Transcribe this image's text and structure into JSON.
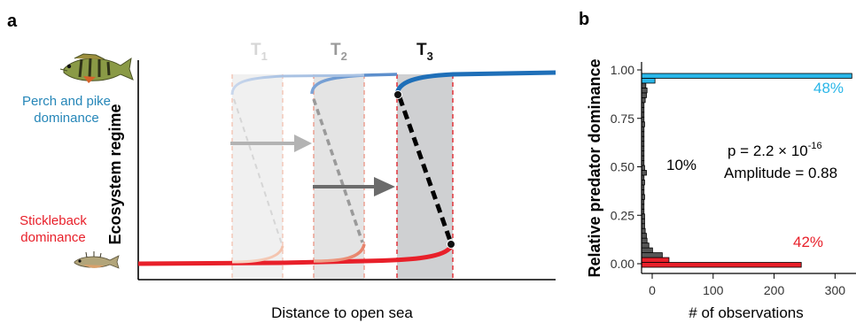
{
  "chart_data": [
    {
      "panel": "a",
      "type": "diagram",
      "xlabel": "Distance to open sea",
      "ylabel": "Ecosystem regime",
      "regime_labels": {
        "top": [
          "Perch and pike",
          "dominance"
        ],
        "bottom": [
          "Stickleback",
          "dominance"
        ]
      },
      "thresholds": [
        {
          "name": "T",
          "sub": "1",
          "color": "#d6d6d6"
        },
        {
          "name": "T",
          "sub": "2",
          "color": "#9a9a9a"
        },
        {
          "name": "T",
          "sub": "3",
          "color": "#111111"
        }
      ],
      "colors": {
        "perch": "#1f6fb8",
        "stickleback": "#e8202a",
        "threshold_line": "#e33b3b"
      }
    },
    {
      "panel": "b",
      "type": "bar",
      "orientation": "horizontal",
      "xlabel": "# of observations",
      "ylabel": "Relative predator dominance",
      "xlim": [
        0,
        350
      ],
      "ylim": [
        0,
        1
      ],
      "xticks": [
        0,
        100,
        200,
        300
      ],
      "yticks": [
        "0.00",
        "0.25",
        "0.50",
        "0.75",
        "1.00"
      ],
      "bin_width": 0.025,
      "bins": [
        {
          "y": 0.0,
          "count": 262,
          "color": "#e8202a"
        },
        {
          "y": 0.025,
          "count": 45,
          "color": "#e8202a"
        },
        {
          "y": 0.05,
          "count": 34,
          "color": "#555555"
        },
        {
          "y": 0.075,
          "count": 18,
          "color": "#555555"
        },
        {
          "y": 0.1,
          "count": 12,
          "color": "#555555"
        },
        {
          "y": 0.125,
          "count": 9,
          "color": "#555555"
        },
        {
          "y": 0.15,
          "count": 8,
          "color": "#555555"
        },
        {
          "y": 0.175,
          "count": 6,
          "color": "#555555"
        },
        {
          "y": 0.2,
          "count": 5,
          "color": "#555555"
        },
        {
          "y": 0.225,
          "count": 5,
          "color": "#555555"
        },
        {
          "y": 0.25,
          "count": 5,
          "color": "#555555"
        },
        {
          "y": 0.275,
          "count": 4,
          "color": "#555555"
        },
        {
          "y": 0.3,
          "count": 4,
          "color": "#555555"
        },
        {
          "y": 0.325,
          "count": 4,
          "color": "#555555"
        },
        {
          "y": 0.35,
          "count": 5,
          "color": "#555555"
        },
        {
          "y": 0.375,
          "count": 4,
          "color": "#555555"
        },
        {
          "y": 0.4,
          "count": 4,
          "color": "#555555"
        },
        {
          "y": 0.425,
          "count": 5,
          "color": "#555555"
        },
        {
          "y": 0.45,
          "count": 4,
          "color": "#555555"
        },
        {
          "y": 0.475,
          "count": 8,
          "color": "#555555"
        },
        {
          "y": 0.5,
          "count": 5,
          "color": "#555555"
        },
        {
          "y": 0.525,
          "count": 4,
          "color": "#555555"
        },
        {
          "y": 0.55,
          "count": 4,
          "color": "#555555"
        },
        {
          "y": 0.575,
          "count": 4,
          "color": "#555555"
        },
        {
          "y": 0.6,
          "count": 4,
          "color": "#555555"
        },
        {
          "y": 0.625,
          "count": 4,
          "color": "#555555"
        },
        {
          "y": 0.65,
          "count": 4,
          "color": "#555555"
        },
        {
          "y": 0.675,
          "count": 4,
          "color": "#555555"
        },
        {
          "y": 0.7,
          "count": 4,
          "color": "#555555"
        },
        {
          "y": 0.725,
          "count": 5,
          "color": "#555555"
        },
        {
          "y": 0.75,
          "count": 4,
          "color": "#555555"
        },
        {
          "y": 0.775,
          "count": 4,
          "color": "#555555"
        },
        {
          "y": 0.8,
          "count": 4,
          "color": "#555555"
        },
        {
          "y": 0.825,
          "count": 4,
          "color": "#555555"
        },
        {
          "y": 0.85,
          "count": 6,
          "color": "#555555"
        },
        {
          "y": 0.875,
          "count": 8,
          "color": "#555555"
        },
        {
          "y": 0.9,
          "count": 9,
          "color": "#555555"
        },
        {
          "y": 0.925,
          "count": 7,
          "color": "#555555"
        },
        {
          "y": 0.95,
          "count": 22,
          "color": "#29b6e8"
        },
        {
          "y": 0.975,
          "count": 345,
          "color": "#29b6e8"
        }
      ],
      "annotations": {
        "pct_top": "48%",
        "pct_mid": "10%",
        "pct_bottom": "42%",
        "p_value": {
          "prefix": "p = 2.2 × 10",
          "exponent": "-16"
        },
        "amplitude": "Amplitude = 0.88"
      }
    }
  ]
}
